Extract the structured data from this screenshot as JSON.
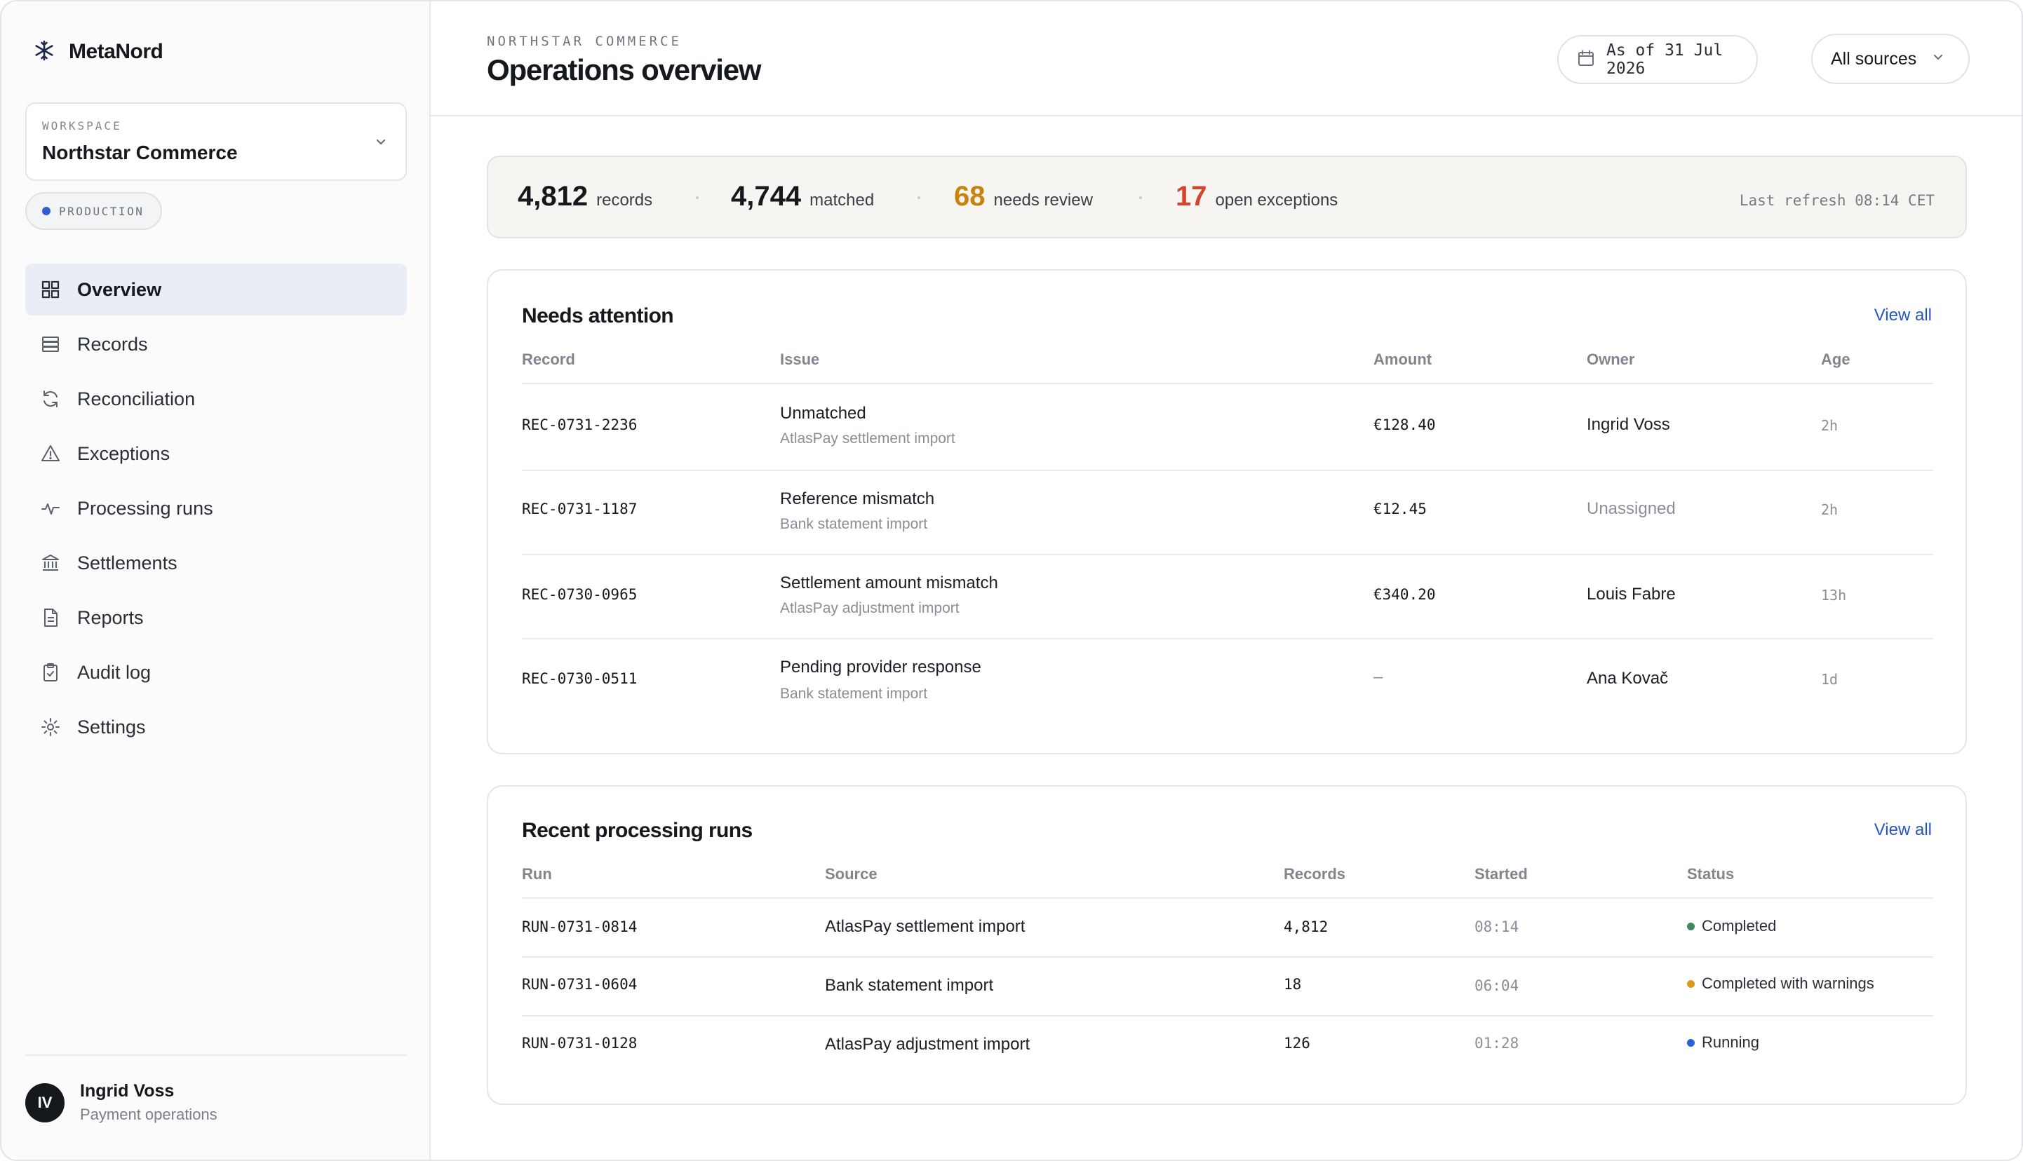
{
  "app": {
    "brand": "MetaNord",
    "workspace_label": "WORKSPACE",
    "workspace_name": "Northstar Commerce",
    "environment": "PRODUCTION",
    "environment_color": "#2f5fce"
  },
  "sidebar": {
    "items": [
      {
        "label": "Overview",
        "icon": "grid-icon",
        "active": true
      },
      {
        "label": "Records",
        "icon": "stack-icon"
      },
      {
        "label": "Reconciliation",
        "icon": "refresh-icon"
      },
      {
        "label": "Exceptions",
        "icon": "warning-icon"
      },
      {
        "label": "Processing runs",
        "icon": "activity-icon"
      },
      {
        "label": "Settlements",
        "icon": "bank-icon"
      },
      {
        "label": "Reports",
        "icon": "document-icon"
      },
      {
        "label": "Audit log",
        "icon": "clipboard-check-icon"
      },
      {
        "label": "Settings",
        "icon": "gear-icon"
      }
    ],
    "user": {
      "initials": "IV",
      "name": "Ingrid Voss",
      "role": "Payment operations"
    }
  },
  "header": {
    "eyebrow": "NORTHSTAR COMMERCE",
    "title": "Operations overview",
    "date_filter": "As of 31 Jul 2026",
    "source_filter": "All sources"
  },
  "summary": {
    "records_value": "4,812",
    "records_label": "records",
    "matched_value": "4,744",
    "matched_label": "matched",
    "review_value": "68",
    "review_label": "needs review",
    "exceptions_value": "17",
    "exceptions_label": "open exceptions",
    "last_refresh": "Last refresh 08:14 CET",
    "colors": {
      "review": "#c9830a",
      "exceptions": "#d6452b"
    }
  },
  "attention": {
    "title": "Needs attention",
    "view_all": "View all",
    "columns": {
      "record": "Record",
      "issue": "Issue",
      "amount": "Amount",
      "owner": "Owner",
      "age": "Age"
    },
    "rows": [
      {
        "record": "REC-0731-2236",
        "issue": "Unmatched",
        "source": "AtlasPay settlement import",
        "amount": "€128.40",
        "owner": "Ingrid Voss",
        "age": "2h"
      },
      {
        "record": "REC-0731-1187",
        "issue": "Reference mismatch",
        "source": "Bank statement import",
        "amount": "€12.45",
        "owner": "Unassigned",
        "age": "2h"
      },
      {
        "record": "REC-0730-0965",
        "issue": "Settlement amount mismatch",
        "source": "AtlasPay adjustment import",
        "amount": "€340.20",
        "owner": "Louis Fabre",
        "age": "13h"
      },
      {
        "record": "REC-0730-0511",
        "issue": "Pending provider response",
        "source": "Bank statement import",
        "amount": "–",
        "owner": "Ana Kovač",
        "age": "1d"
      }
    ]
  },
  "runs": {
    "title": "Recent processing runs",
    "view_all": "View all",
    "columns": {
      "run": "Run",
      "source": "Source",
      "records": "Records",
      "started": "Started",
      "status": "Status"
    },
    "rows": [
      {
        "run": "RUN-0731-0814",
        "source": "AtlasPay settlement import",
        "records": "4,812",
        "started": "08:14",
        "status": "Completed",
        "status_color": "#3f8a5c"
      },
      {
        "run": "RUN-0731-0604",
        "source": "Bank statement import",
        "records": "18",
        "started": "06:04",
        "status": "Completed with warnings",
        "status_color": "#d99a1c"
      },
      {
        "run": "RUN-0731-0128",
        "source": "AtlasPay adjustment import",
        "records": "126",
        "started": "01:28",
        "status": "Running",
        "status_color": "#2f5fce"
      }
    ]
  }
}
